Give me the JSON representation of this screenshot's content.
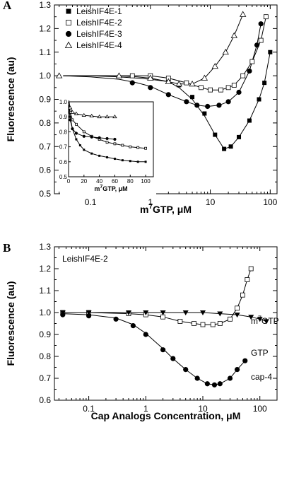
{
  "chart_data": [
    {
      "panel_label": "A",
      "type": "scatter",
      "xscale": "log",
      "xlim": [
        0.025,
        130
      ],
      "ylim": [
        0.5,
        1.3
      ],
      "xticks": [
        0.1,
        1,
        10,
        100
      ],
      "xtick_labels": [
        "0.1",
        "1",
        "10",
        "100"
      ],
      "yticks": [
        0.5,
        0.6,
        0.7,
        0.8,
        0.9,
        1.0,
        1.1,
        1.2,
        1.3
      ],
      "ytick_labels": [
        "0.5",
        "0.6",
        "0.7",
        "0.8",
        "0.9",
        "1.0",
        "1.1",
        "1.2",
        "1.3"
      ],
      "xlabel_main": "m",
      "xlabel_sup": "7",
      "xlabel_rest": "GTP,  μM",
      "ylabel": "Fluorescence (au)",
      "legend_position": "top-left",
      "series": [
        {
          "name": "LeishIF4E-1",
          "marker": "filled-square",
          "x": [
            2,
            3,
            5,
            8,
            12,
            17,
            22,
            30,
            45,
            65,
            80,
            100
          ],
          "y": [
            0.985,
            0.96,
            0.91,
            0.84,
            0.75,
            0.69,
            0.7,
            0.74,
            0.81,
            0.9,
            0.97,
            1.1
          ]
        },
        {
          "name": "LeishIF4E-2",
          "marker": "open-square",
          "x": [
            0.5,
            1,
            2,
            4,
            7,
            10,
            15,
            20,
            25,
            35,
            50,
            70,
            85
          ],
          "y": [
            1.0,
            1.0,
            0.99,
            0.97,
            0.95,
            0.94,
            0.94,
            0.95,
            0.96,
            1.0,
            1.06,
            1.15,
            1.25
          ]
        },
        {
          "name": "LeishIF4E-3",
          "marker": "filled-circle",
          "x": [
            0.5,
            1,
            2,
            4,
            6,
            9,
            14,
            20,
            30,
            45,
            60,
            70
          ],
          "y": [
            0.97,
            0.95,
            0.92,
            0.89,
            0.875,
            0.87,
            0.875,
            0.89,
            0.93,
            1.02,
            1.13,
            1.22
          ]
        },
        {
          "name": "LeishIF4E-4",
          "marker": "open-triangle",
          "x": [
            0.03,
            0.3,
            1,
            2,
            3,
            5,
            8,
            12,
            18,
            25,
            35
          ],
          "y": [
            1.0,
            1.0,
            0.99,
            0.975,
            0.965,
            0.965,
            0.99,
            1.04,
            1.1,
            1.17,
            1.26
          ]
        }
      ],
      "inset": {
        "xlim": [
          0,
          110
        ],
        "ylim": [
          0.5,
          1.0
        ],
        "xticks": [
          0,
          20,
          40,
          60,
          80,
          100
        ],
        "xtick_labels": [
          "0",
          "20",
          "40",
          "60",
          "80",
          "100"
        ],
        "yticks": [
          0.5,
          0.6,
          0.7,
          0.8,
          0.9,
          1.0
        ],
        "ytick_labels": [
          "0.5",
          "0.6",
          "0.7",
          "0.8",
          "0.9",
          "1.0"
        ],
        "xlabel_main": "m",
        "xlabel_sup": "7",
        "xlabel_rest": "GTP, μM",
        "series": [
          {
            "name": "LeishIF4E-1",
            "marker": "filled-square",
            "x": [
              2,
              5,
              10,
              15,
              20,
              30,
              40,
              50,
              60,
              70,
              80,
              90,
              100
            ],
            "y": [
              0.9,
              0.82,
              0.75,
              0.71,
              0.68,
              0.655,
              0.64,
              0.63,
              0.62,
              0.61,
              0.605,
              0.6,
              0.6
            ]
          },
          {
            "name": "LeishIF4E-2",
            "marker": "open-square",
            "x": [
              2,
              5,
              10,
              20,
              30,
              40,
              50,
              60,
              70,
              80,
              90,
              100
            ],
            "y": [
              0.93,
              0.88,
              0.85,
              0.8,
              0.77,
              0.75,
              0.73,
              0.72,
              0.71,
              0.7,
              0.695,
              0.69
            ]
          },
          {
            "name": "LeishIF4E-3",
            "marker": "filled-circle",
            "x": [
              2,
              5,
              10,
              20,
              30,
              40,
              50,
              60
            ],
            "y": [
              0.88,
              0.82,
              0.79,
              0.77,
              0.765,
              0.76,
              0.755,
              0.75
            ]
          },
          {
            "name": "LeishIF4E-4",
            "marker": "open-triangle",
            "x": [
              2,
              5,
              10,
              20,
              30,
              40,
              50,
              60
            ],
            "y": [
              0.96,
              0.93,
              0.92,
              0.91,
              0.905,
              0.9,
              0.9,
              0.9
            ]
          }
        ]
      }
    },
    {
      "panel_label": "B",
      "type": "scatter",
      "xscale": "log",
      "xlim": [
        0.025,
        200
      ],
      "ylim": [
        0.6,
        1.3
      ],
      "xticks": [
        0.1,
        1,
        10,
        100
      ],
      "xtick_labels": [
        "0.1",
        "1",
        "10",
        "100"
      ],
      "yticks": [
        0.6,
        0.7,
        0.8,
        0.9,
        1.0,
        1.1,
        1.2,
        1.3
      ],
      "ytick_labels": [
        "0.6",
        "0.7",
        "0.8",
        "0.9",
        "1.0",
        "1.1",
        "1.2",
        "1.3"
      ],
      "xlabel": "Cap Analogs Concentration,  μM",
      "ylabel": "Fluorescence (au)",
      "panel_title": "LeishIF4E-2",
      "series": [
        {
          "name": "m7GTP",
          "label_main": "m",
          "label_sup": "7",
          "label_rest": "GTP",
          "marker": "open-square",
          "x": [
            0.035,
            0.1,
            0.5,
            1,
            2,
            4,
            7,
            10,
            15,
            20,
            30,
            40,
            50,
            60,
            70
          ],
          "y": [
            1.0,
            1.0,
            0.995,
            0.99,
            0.98,
            0.96,
            0.95,
            0.945,
            0.945,
            0.95,
            0.97,
            1.02,
            1.08,
            1.15,
            1.2
          ]
        },
        {
          "name": "GTP",
          "marker": "filled-triangle-down",
          "x": [
            0.035,
            0.1,
            0.5,
            1,
            2,
            5,
            10,
            20,
            40,
            70,
            100,
            130
          ],
          "y": [
            1.0,
            1.0,
            1.0,
            1.0,
            1.0,
            1.0,
            1.0,
            0.995,
            0.99,
            0.98,
            0.97,
            0.96
          ]
        },
        {
          "name": "cap-4",
          "marker": "filled-circle",
          "x": [
            0.035,
            0.1,
            0.3,
            0.6,
            1,
            2,
            3,
            5,
            8,
            12,
            16,
            20,
            30,
            40,
            55
          ],
          "y": [
            0.99,
            0.985,
            0.97,
            0.94,
            0.9,
            0.83,
            0.79,
            0.74,
            0.7,
            0.675,
            0.67,
            0.675,
            0.7,
            0.74,
            0.78
          ]
        }
      ]
    }
  ]
}
